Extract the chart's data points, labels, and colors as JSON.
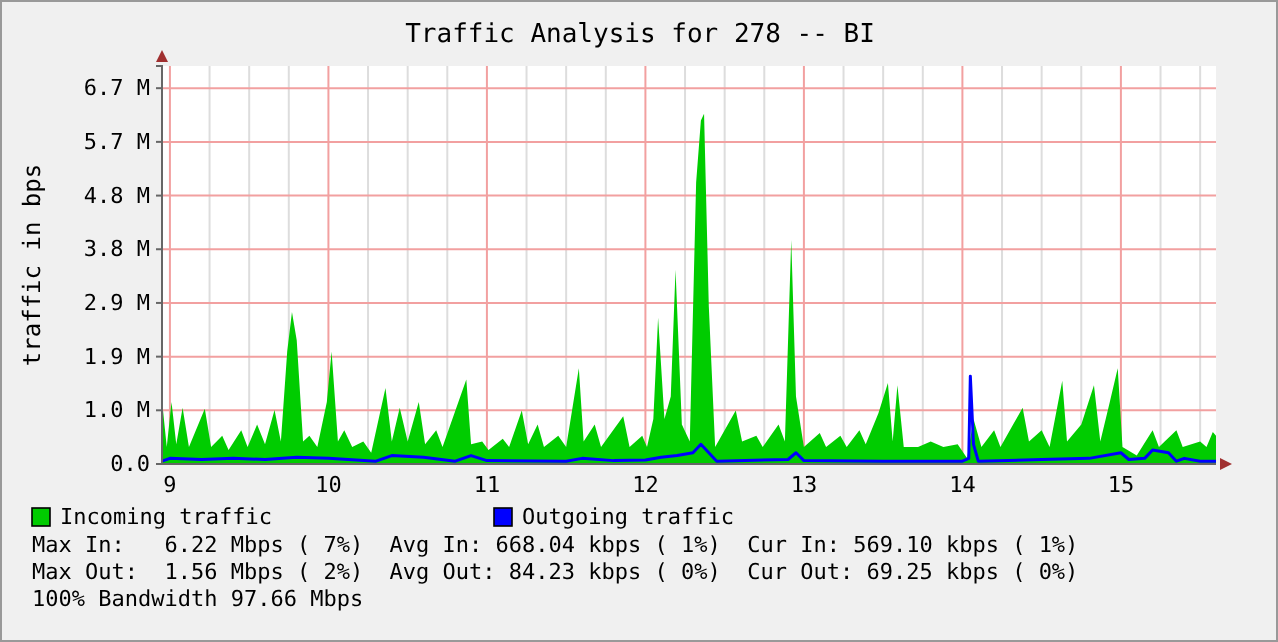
{
  "chart_data": {
    "type": "area",
    "title": "Traffic Analysis for 278 -- BI",
    "ylabel": "traffic in bps",
    "xlim": [
      8.95,
      15.6
    ],
    "xticks": [
      9,
      {
        "value": 9.25,
        "label": null
      },
      {
        "value": 9.5,
        "label": null
      },
      {
        "value": 9.75,
        "label": null
      },
      10,
      {
        "value": 10.25,
        "label": null
      },
      {
        "value": 10.5,
        "label": null
      },
      {
        "value": 10.75,
        "label": null
      },
      11,
      {
        "value": 11.25,
        "label": null
      },
      {
        "value": 11.5,
        "label": null
      },
      {
        "value": 11.75,
        "label": null
      },
      12,
      {
        "value": 12.25,
        "label": null
      },
      {
        "value": 12.5,
        "label": null
      },
      {
        "value": 12.75,
        "label": null
      },
      13,
      {
        "value": 13.25,
        "label": null
      },
      {
        "value": 13.5,
        "label": null
      },
      {
        "value": 13.75,
        "label": null
      },
      14,
      {
        "value": 14.25,
        "label": null
      },
      {
        "value": 14.5,
        "label": null
      },
      {
        "value": 14.75,
        "label": null
      },
      15,
      {
        "value": 15.25,
        "label": null
      },
      {
        "value": 15.5,
        "label": null
      }
    ],
    "ylim": [
      0,
      7.07
    ],
    "yticks": [
      {
        "value": 0,
        "label": "0.0"
      },
      {
        "value": 0.954,
        "label": "1.0 M"
      },
      {
        "value": 1.907,
        "label": "1.9 M"
      },
      {
        "value": 2.861,
        "label": "2.9 M"
      },
      {
        "value": 3.815,
        "label": "3.8 M"
      },
      {
        "value": 4.768,
        "label": "4.8 M"
      },
      {
        "value": 5.722,
        "label": "5.7 M"
      },
      {
        "value": 6.676,
        "label": "6.7 M"
      }
    ],
    "grid": true,
    "legend": "bottom",
    "series": [
      {
        "name": "Incoming traffic",
        "color": "#00cc00",
        "x": [
          8.95,
          8.98,
          9.01,
          9.04,
          9.08,
          9.12,
          9.22,
          9.26,
          9.33,
          9.37,
          9.45,
          9.49,
          9.55,
          9.6,
          9.66,
          9.7,
          9.74,
          9.77,
          9.8,
          9.84,
          9.88,
          9.93,
          9.99,
          10.02,
          10.06,
          10.1,
          10.15,
          10.22,
          10.27,
          10.36,
          10.4,
          10.45,
          10.5,
          10.57,
          10.61,
          10.68,
          10.72,
          10.87,
          10.9,
          10.97,
          11.01,
          11.1,
          11.14,
          11.22,
          11.26,
          11.32,
          11.36,
          11.45,
          11.5,
          11.58,
          11.61,
          11.68,
          11.72,
          11.86,
          11.9,
          11.98,
          12.01,
          12.05,
          12.08,
          12.12,
          12.16,
          12.19,
          12.23,
          12.28,
          12.32,
          12.35,
          12.37,
          12.4,
          12.44,
          12.57,
          12.61,
          12.7,
          12.74,
          12.84,
          12.88,
          12.92,
          12.95,
          13.0,
          13.1,
          13.14,
          13.23,
          13.27,
          13.35,
          13.39,
          13.47,
          13.53,
          13.56,
          13.59,
          13.63,
          13.72,
          13.8,
          13.88,
          13.97,
          14.03,
          14.07,
          14.12,
          14.2,
          14.24,
          14.32,
          14.38,
          14.42,
          14.5,
          14.55,
          14.63,
          14.66,
          14.75,
          14.83,
          14.87,
          14.93,
          14.98,
          15.01,
          15.1,
          15.2,
          15.24,
          15.35,
          15.39,
          15.5,
          15.54,
          15.58,
          15.6
        ],
        "values": [
          1.13,
          0.3,
          1.1,
          0.35,
          1.0,
          0.3,
          0.98,
          0.3,
          0.5,
          0.25,
          0.6,
          0.3,
          0.7,
          0.35,
          0.96,
          0.4,
          2.0,
          2.7,
          2.2,
          0.4,
          0.5,
          0.3,
          1.1,
          2.0,
          0.4,
          0.6,
          0.3,
          0.4,
          0.2,
          1.35,
          0.4,
          1.0,
          0.4,
          1.1,
          0.35,
          0.6,
          0.3,
          1.5,
          0.35,
          0.4,
          0.25,
          0.45,
          0.3,
          0.95,
          0.35,
          0.7,
          0.3,
          0.5,
          0.3,
          1.7,
          0.4,
          0.7,
          0.3,
          0.85,
          0.3,
          0.5,
          0.3,
          0.8,
          2.6,
          0.8,
          1.2,
          3.45,
          0.7,
          0.4,
          5.0,
          6.1,
          6.22,
          2.8,
          0.3,
          0.95,
          0.4,
          0.5,
          0.3,
          0.7,
          0.4,
          3.98,
          1.2,
          0.3,
          0.55,
          0.3,
          0.5,
          0.3,
          0.6,
          0.35,
          0.9,
          1.44,
          0.4,
          1.4,
          0.3,
          0.3,
          0.4,
          0.3,
          0.35,
          0.1,
          0.8,
          0.3,
          0.6,
          0.3,
          0.7,
          1.0,
          0.4,
          0.6,
          0.3,
          1.48,
          0.4,
          0.7,
          1.4,
          0.4,
          1.1,
          1.7,
          0.3,
          0.15,
          0.6,
          0.3,
          0.6,
          0.3,
          0.4,
          0.3,
          0.57,
          0.5
        ]
      },
      {
        "name": "Outgoing traffic",
        "type": "line",
        "color": "#0000ff",
        "x": [
          8.95,
          9.0,
          9.2,
          9.4,
          9.6,
          9.8,
          10.0,
          10.3,
          10.4,
          10.6,
          10.8,
          10.9,
          11.0,
          11.5,
          11.6,
          11.8,
          12.0,
          12.1,
          12.2,
          12.3,
          12.35,
          12.4,
          12.45,
          12.9,
          12.95,
          13.0,
          13.5,
          14.0,
          14.04,
          14.05,
          14.07,
          14.1,
          14.5,
          14.8,
          15.0,
          15.05,
          15.15,
          15.2,
          15.3,
          15.35,
          15.4,
          15.5,
          15.6
        ],
        "values": [
          0.05,
          0.1,
          0.08,
          0.1,
          0.08,
          0.12,
          0.1,
          0.05,
          0.15,
          0.12,
          0.05,
          0.15,
          0.06,
          0.05,
          0.1,
          0.06,
          0.07,
          0.12,
          0.15,
          0.2,
          0.35,
          0.2,
          0.05,
          0.08,
          0.2,
          0.06,
          0.05,
          0.05,
          0.1,
          1.56,
          0.35,
          0.05,
          0.08,
          0.1,
          0.2,
          0.08,
          0.1,
          0.25,
          0.2,
          0.05,
          0.1,
          0.05,
          0.05
        ]
      }
    ],
    "annotations": [
      "Max In:   6.22 Mbps ( 7%)  Avg In: 668.04 kbps ( 1%)  Cur In: 569.10 kbps ( 1%)",
      "Max Out:  1.56 Mbps ( 2%)  Avg Out: 84.23 kbps ( 0%)  Cur Out: 69.25 kbps ( 0%)",
      "100% Bandwidth 97.66 Mbps"
    ]
  }
}
